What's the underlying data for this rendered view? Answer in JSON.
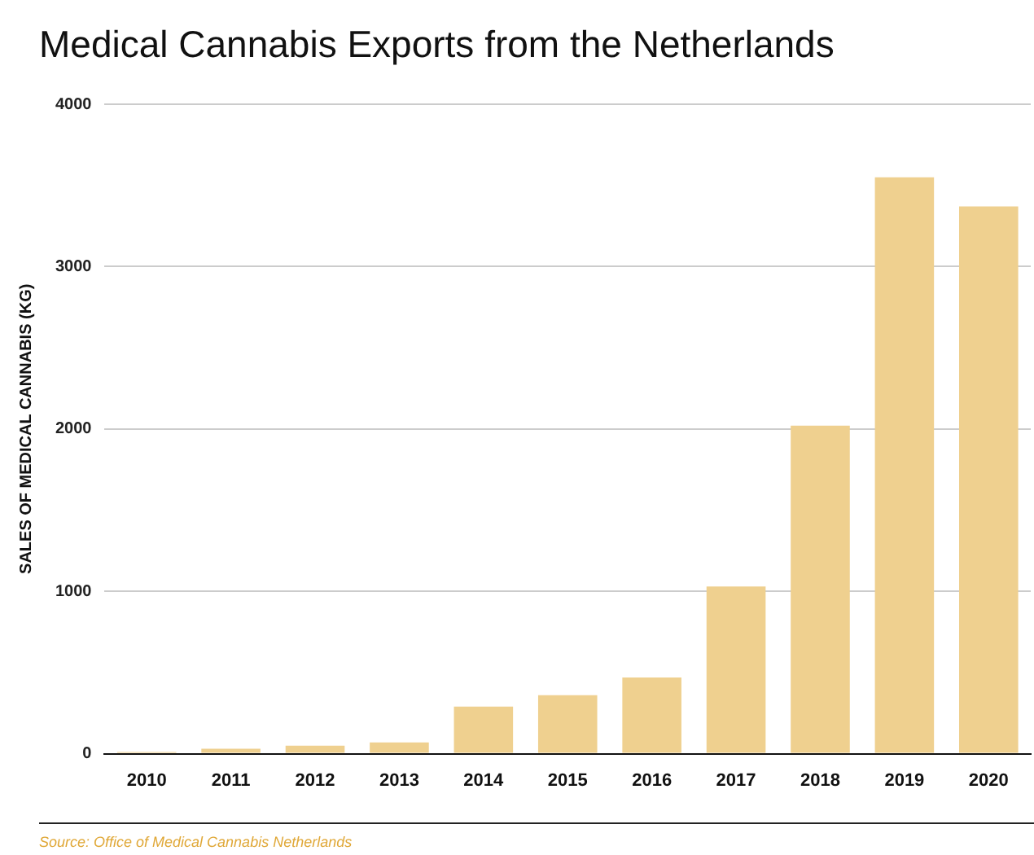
{
  "chart_data": {
    "type": "bar",
    "title": "Medical Cannabis Exports from the Netherlands",
    "ylabel": "SALES OF MEDICAL CANNABIS (KG)",
    "categories": [
      "2010",
      "2011",
      "2012",
      "2013",
      "2014",
      "2015",
      "2016",
      "2017",
      "2018",
      "2019",
      "2020"
    ],
    "values": [
      10,
      30,
      50,
      70,
      290,
      360,
      470,
      1030,
      2020,
      3550,
      3370
    ],
    "color": "#efd08f",
    "ylim": [
      0,
      4000
    ],
    "yticks": [
      0,
      1000,
      2000,
      3000,
      4000
    ],
    "grid": "y",
    "annotations": [
      "Source: Office of Medical Cannabis Netherlands"
    ]
  }
}
